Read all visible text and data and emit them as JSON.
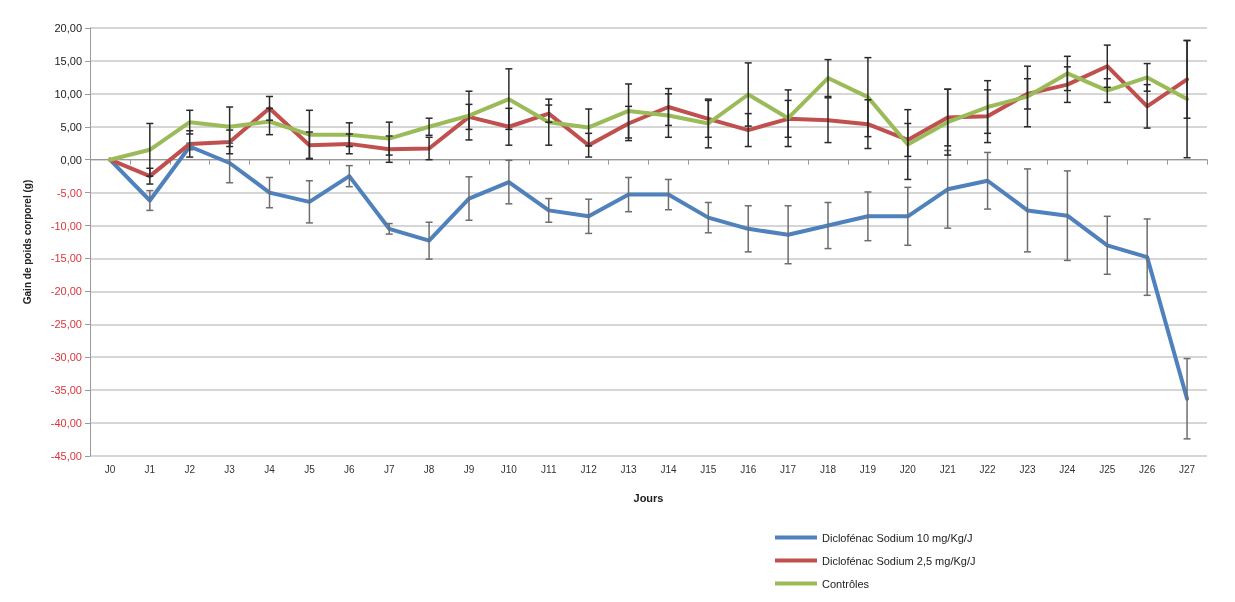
{
  "chart_data": {
    "type": "line",
    "xlabel": "Jours",
    "ylabel": "Gain de poids corporel (g)",
    "categories": [
      "J0",
      "J1",
      "J2",
      "J3",
      "J4",
      "J5",
      "J6",
      "J7",
      "J8",
      "J9",
      "J10",
      "J11",
      "J12",
      "J13",
      "J14",
      "J15",
      "J16",
      "J17",
      "J18",
      "J19",
      "J20",
      "J21",
      "J22",
      "J23",
      "J24",
      "J25",
      "J26",
      "J27"
    ],
    "series": [
      {
        "name": "Diclofénac Sodium 10 mg/Kg/J",
        "color": "#4f81bd",
        "values": [
          0,
          -6.2,
          2,
          -0.5,
          -5,
          -6.4,
          -2.5,
          -10.5,
          -12.3,
          -5.9,
          -3.4,
          -7.7,
          -8.6,
          -5.3,
          -5.3,
          -8.8,
          -10.5,
          -11.4,
          -10,
          -8.6,
          -8.6,
          -4.5,
          -3.2,
          -7.7,
          -8.5,
          -13,
          -14.8,
          -36.3
        ],
        "errors": [
          null,
          1.5,
          0.5,
          3,
          2.3,
          3.2,
          1.6,
          0.8,
          2.8,
          3.3,
          3.3,
          1.8,
          2.6,
          2.6,
          2.3,
          2.3,
          3.5,
          4.4,
          3.5,
          3.7,
          4.4,
          5.9,
          4.3,
          6.3,
          6.8,
          4.4,
          5.8,
          6.1
        ]
      },
      {
        "name": "Diclofénac Sodium 2,5 mg/Kg/J",
        "color": "#c0504d",
        "values": [
          0,
          -2.5,
          2.4,
          2.7,
          7.8,
          2.2,
          2.4,
          1.6,
          1.7,
          6.5,
          5,
          7,
          2.2,
          5.5,
          8,
          6.2,
          4.5,
          6.2,
          6,
          5.4,
          3,
          6.4,
          6.6,
          10,
          11.4,
          14.2,
          8.1,
          12.2
        ],
        "errors": [
          null,
          1.2,
          2,
          1.8,
          1.8,
          2,
          1.5,
          2,
          1.7,
          1.9,
          2.8,
          1.3,
          1.8,
          2.6,
          2.8,
          2.8,
          2.5,
          2.8,
          3.4,
          3.7,
          2.5,
          4.3,
          4,
          2.3,
          2.7,
          3.2,
          3.3,
          5.9
        ]
      },
      {
        "name": "Contrôles",
        "color": "#9bbb59",
        "values": [
          0,
          1.5,
          5.7,
          5,
          5.8,
          3.8,
          3.8,
          3.2,
          5,
          6.7,
          9.2,
          5.7,
          4.9,
          7.4,
          6.7,
          5.5,
          9.9,
          6.3,
          12.4,
          9.5,
          2.3,
          5.7,
          8,
          9.6,
          13.1,
          10.5,
          12.5,
          9.2
        ],
        "errors": [
          null,
          4,
          1.8,
          3,
          2,
          3.7,
          1.8,
          2.5,
          1.3,
          3.7,
          4.6,
          3.5,
          2.8,
          4.1,
          3.3,
          3.7,
          4.8,
          4.3,
          2.8,
          6,
          5.3,
          5,
          4,
          4.6,
          2.6,
          1.8,
          2.1,
          8.9
        ]
      }
    ],
    "ylim": [
      -45,
      20
    ],
    "yticks": [
      {
        "value": -45,
        "label": "-45,00"
      },
      {
        "value": -40,
        "label": "-40,00"
      },
      {
        "value": -35,
        "label": "-35,00"
      },
      {
        "value": -30,
        "label": "-30,00"
      },
      {
        "value": -25,
        "label": "-25,00"
      },
      {
        "value": -20,
        "label": "-20,00"
      },
      {
        "value": -15,
        "label": "-15,00"
      },
      {
        "value": -10,
        "label": "-10,00"
      },
      {
        "value": -5,
        "label": "-5,00"
      },
      {
        "value": 0,
        "label": "0,00"
      },
      {
        "value": 5,
        "label": "5,00"
      },
      {
        "value": 10,
        "label": "10,00"
      },
      {
        "value": 15,
        "label": "15,00"
      },
      {
        "value": 20,
        "label": "20,00"
      }
    ],
    "grid": "y",
    "legend": "bottom",
    "marker": "none",
    "line_style": "solid"
  }
}
